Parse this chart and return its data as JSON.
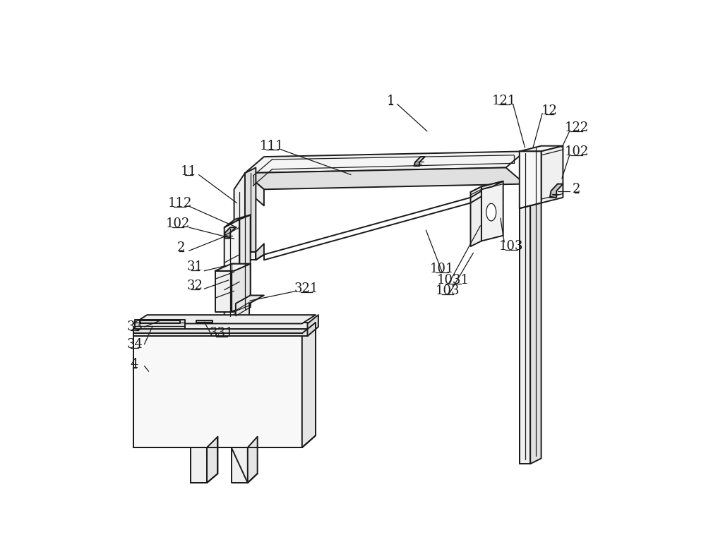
{
  "bg": "#ffffff",
  "lc": "#1a1a1a",
  "lw": 1.4,
  "lw2": 0.9,
  "fs": 13
}
